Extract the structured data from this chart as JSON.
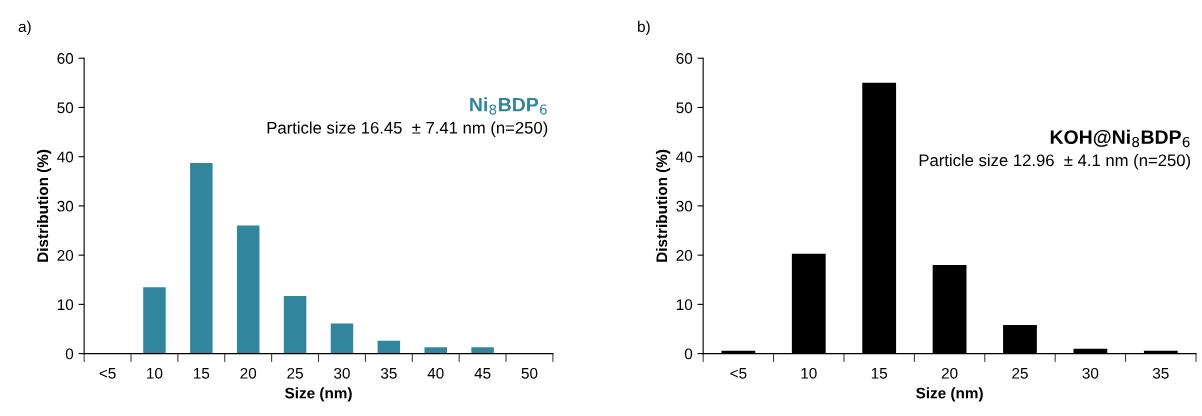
{
  "chart_data": [
    {
      "type": "bar",
      "xlabel": "Size (nm)",
      "ylabel": "Distribution (%)",
      "categories": [
        "<5",
        "10",
        "15",
        "20",
        "25",
        "30",
        "35",
        "40",
        "45",
        "50"
      ],
      "values": [
        0,
        13.5,
        38.7,
        26,
        11.7,
        6.1,
        2.6,
        1.3,
        1.3,
        0
      ],
      "color": "#31859c",
      "ylim": [
        0,
        60
      ],
      "yticks": [
        0,
        10,
        20,
        30,
        40,
        50,
        60
      ],
      "grid": false,
      "legend": false,
      "annotations": [
        "a)",
        "Ni$_{8}$BDP$_{6}$",
        "Particle size 16.45  ± 7.41 nm (n=250)"
      ]
    },
    {
      "type": "bar",
      "xlabel": "Size (nm)",
      "ylabel": "Distribution (%)",
      "categories": [
        "<5",
        "10",
        "15",
        "20",
        "25",
        "30",
        "35"
      ],
      "values": [
        0.6,
        20.3,
        55,
        18,
        5.8,
        1,
        0.6
      ],
      "color": "#000000",
      "ylim": [
        0,
        60
      ],
      "yticks": [
        0,
        10,
        20,
        30,
        40,
        50,
        60
      ],
      "grid": false,
      "legend": false,
      "annotations": [
        "b)",
        "KOH@Ni$_{8}$BDP$_{6}$",
        "Particle size 12.96  ± 4.1 nm (n=250)"
      ]
    }
  ]
}
